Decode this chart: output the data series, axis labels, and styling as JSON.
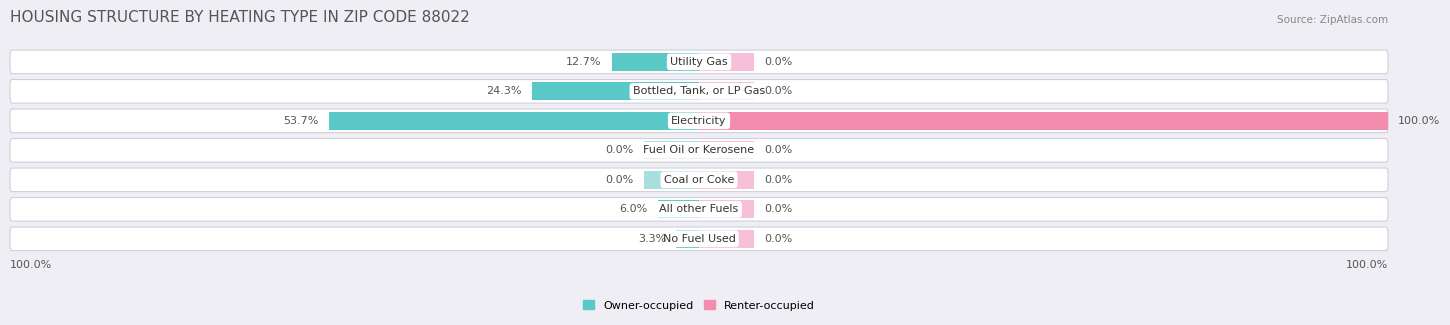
{
  "title": "HOUSING STRUCTURE BY HEATING TYPE IN ZIP CODE 88022",
  "source": "Source: ZipAtlas.com",
  "categories": [
    "Utility Gas",
    "Bottled, Tank, or LP Gas",
    "Electricity",
    "Fuel Oil or Kerosene",
    "Coal or Coke",
    "All other Fuels",
    "No Fuel Used"
  ],
  "owner_values": [
    12.7,
    24.3,
    53.7,
    0.0,
    0.0,
    6.0,
    3.3
  ],
  "renter_values": [
    0.0,
    0.0,
    100.0,
    0.0,
    0.0,
    0.0,
    0.0
  ],
  "owner_color": "#5bc8c8",
  "owner_color_light": "#a8dede",
  "renter_color": "#f48cb0",
  "renter_color_light": "#f8c0d8",
  "background_color": "#eeeef4",
  "row_bg_color": "#e4e4ec",
  "row_border_color": "#d0d0dc",
  "title_color": "#555555",
  "value_color": "#555555",
  "label_color": "#333333",
  "title_fontsize": 11,
  "label_fontsize": 8,
  "value_fontsize": 8,
  "tick_fontsize": 8,
  "legend_fontsize": 8,
  "source_fontsize": 7.5,
  "xlim_left": -100,
  "xlim_right": 100,
  "zero_stub": 8,
  "bar_height": 0.62
}
